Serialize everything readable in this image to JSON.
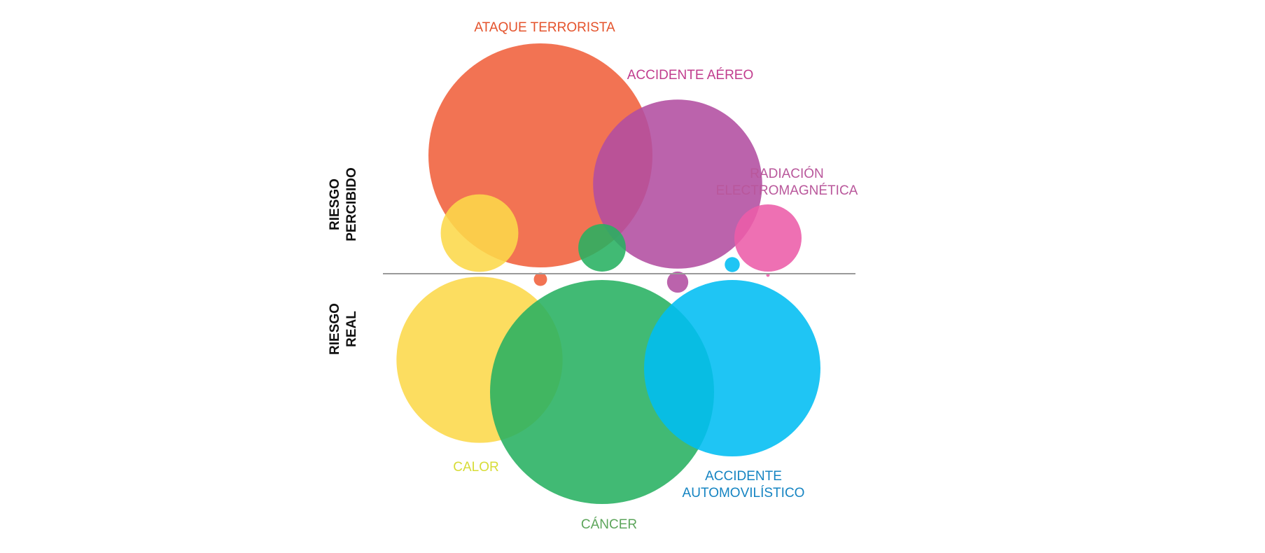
{
  "chart_data": {
    "type": "bubble",
    "panel_labels": {
      "perceived": [
        "RIESGO",
        "PERCIBIDO"
      ],
      "real": [
        "RIESGO",
        "REAL"
      ]
    },
    "scale_note": "bubble area proportional to risk",
    "series": [
      {
        "name": "Ataque terrorista",
        "label_lines": [
          "ATAQUE TERRORISTA"
        ],
        "color": "#f0603b",
        "label_color": "#e4532c",
        "perceived": 100,
        "real": 0.35
      },
      {
        "name": "Accidente aéreo",
        "label_lines": [
          "ACCIDENTE AÉREO"
        ],
        "color": "#b24da0",
        "label_color": "#c13d8e",
        "perceived": 57,
        "real": 0.9
      },
      {
        "name": "Radiación electromagnética",
        "label_lines": [
          "RADIACIÓN",
          "ELECTROMAGNÉTICA"
        ],
        "color": "#ec5ca8",
        "label_color": "#b9579b",
        "perceived": 9,
        "real": 0.02
      },
      {
        "name": "Calor",
        "label_lines": [
          "CALOR"
        ],
        "color": "#fcd84a",
        "label_color": "#d7dc36",
        "perceived": 12,
        "real": 55
      },
      {
        "name": "Cáncer",
        "label_lines": [
          "CÁNCER"
        ],
        "color": "#27b061",
        "label_color": "#5da55b",
        "perceived": 4.5,
        "real": 100
      },
      {
        "name": "Accidente automovilístico",
        "label_lines": [
          "ACCIDENTE",
          "AUTOMOVILÍSTICO"
        ],
        "color": "#00bdf2",
        "label_color": "#1584c2",
        "perceived": 0.45,
        "real": 62
      }
    ],
    "divider_color": "#9a9a9a"
  }
}
